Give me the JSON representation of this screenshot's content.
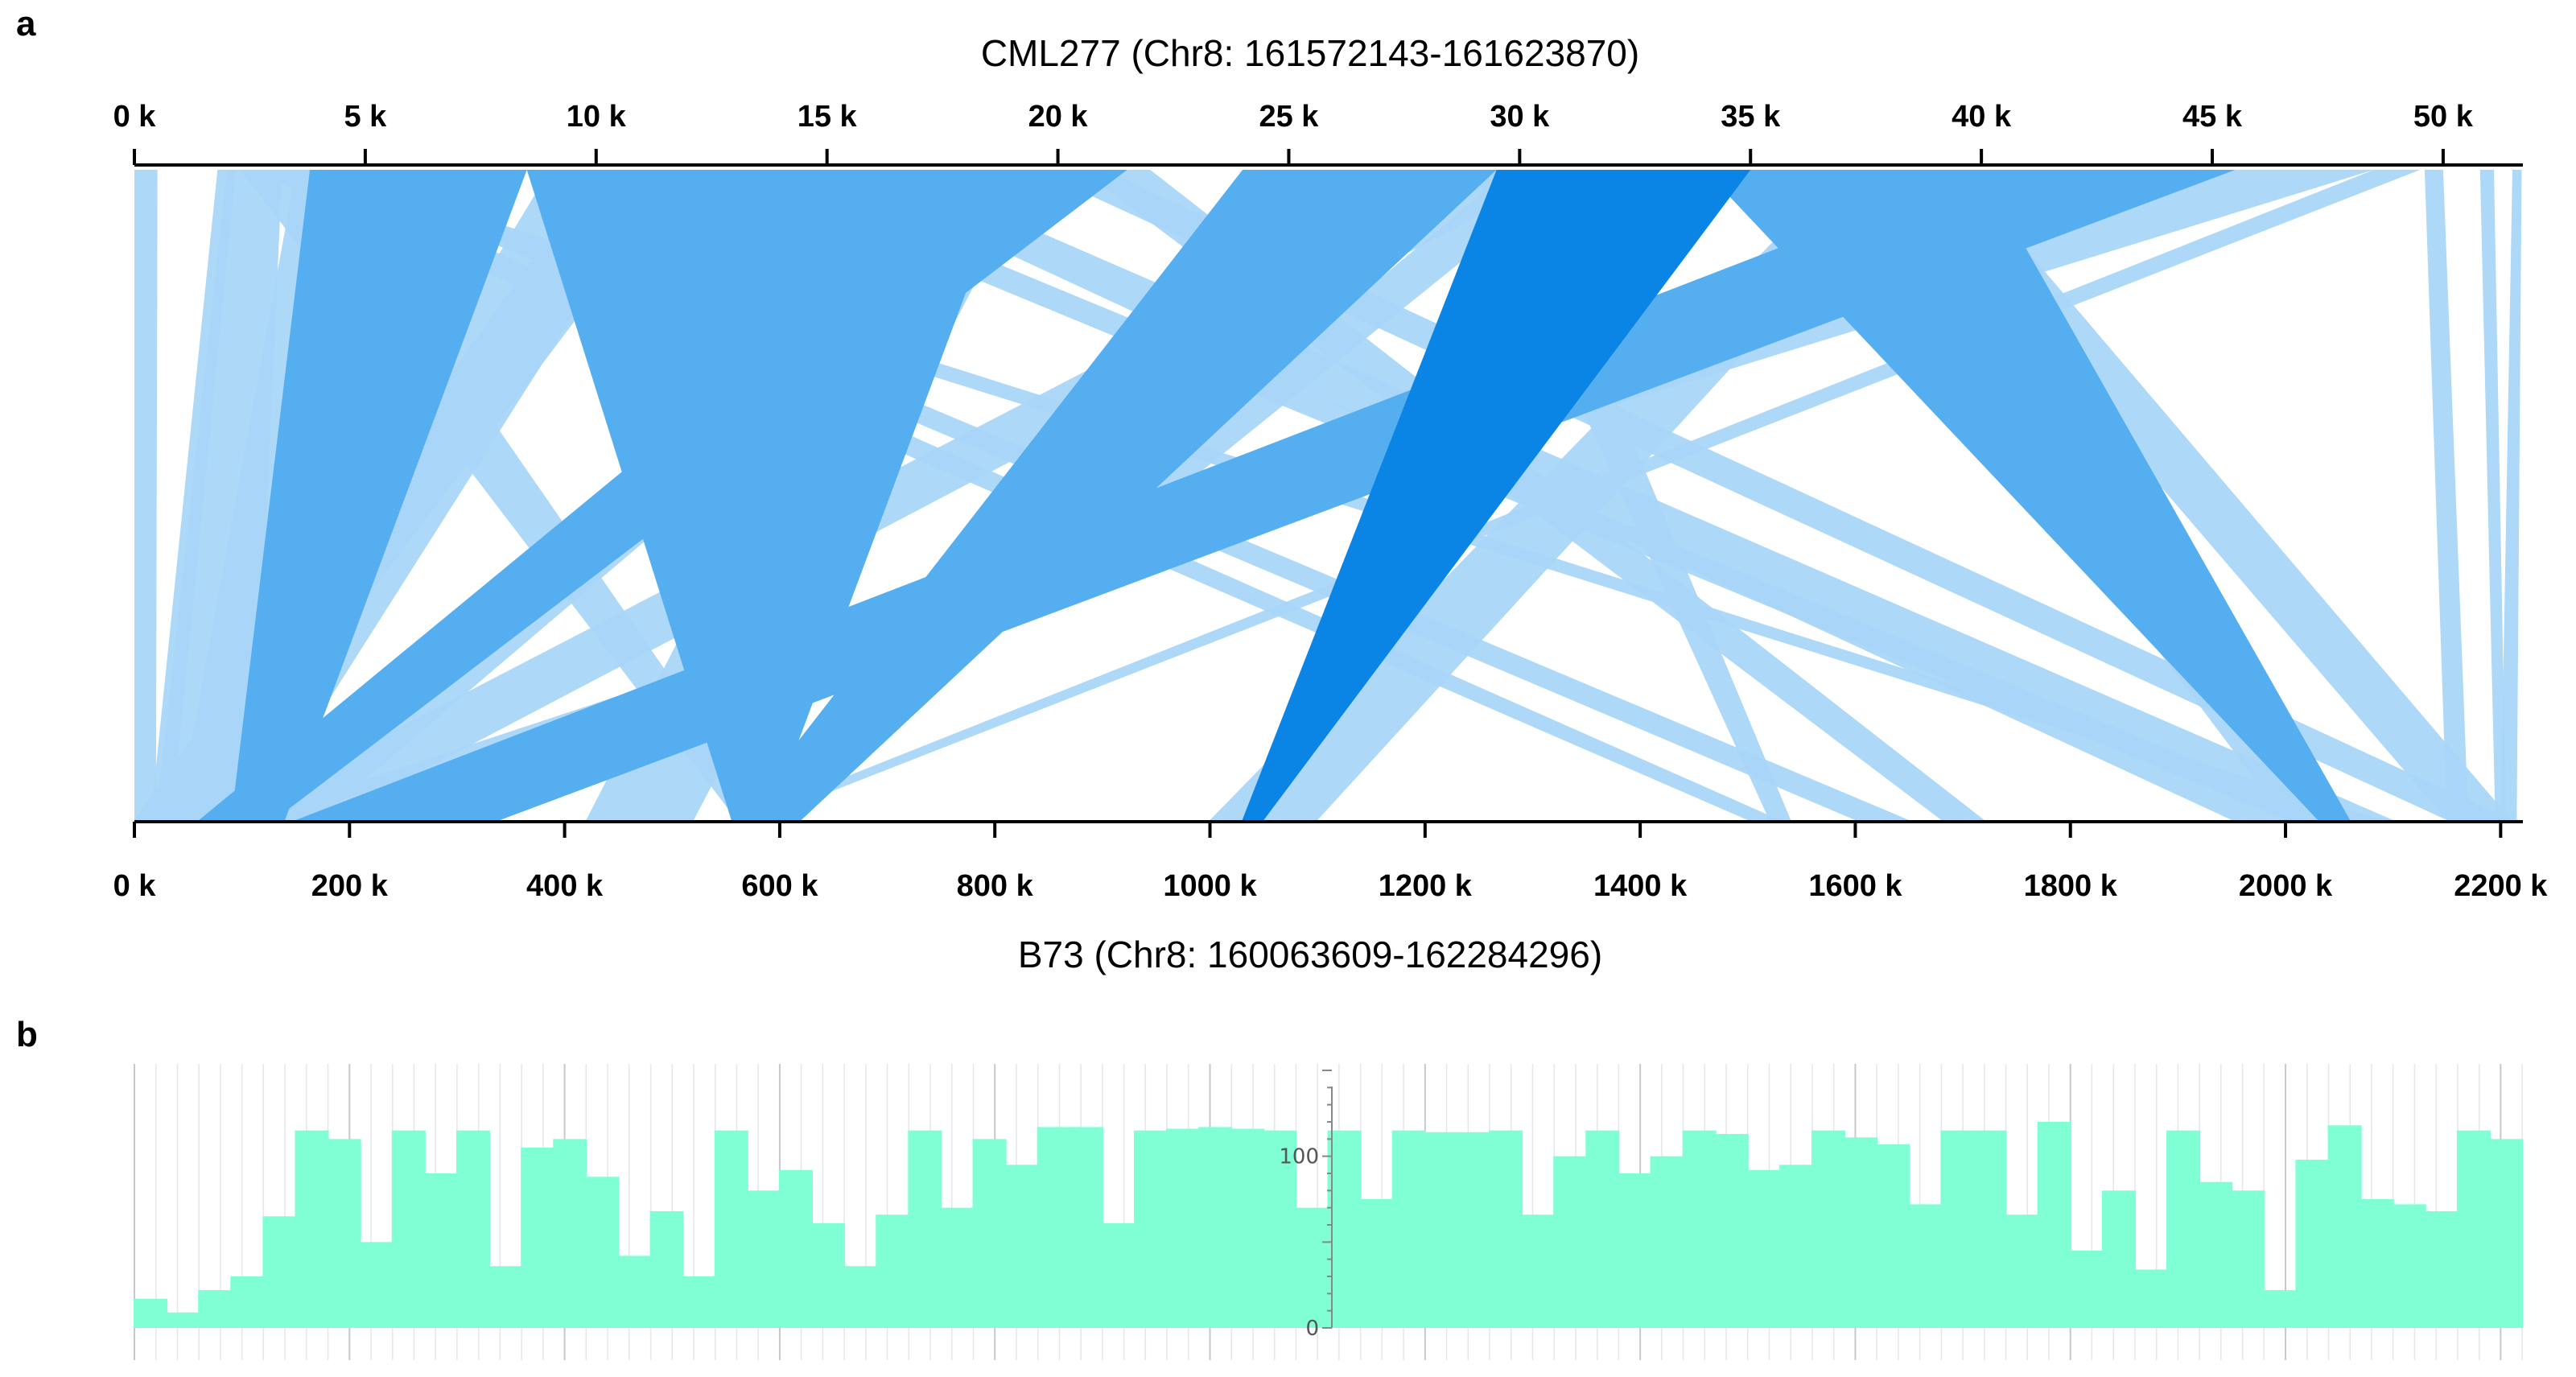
{
  "chart_data": [
    {
      "type": "synteny",
      "panel_label": "a",
      "top_title": "CML277 (Chr8: 161572143-161623870)",
      "bottom_title": "B73 (Chr8: 160063609-162284296)",
      "top_unit": "k",
      "bottom_unit": "k",
      "top_range": [
        0,
        51.727
      ],
      "bottom_range": [
        0,
        2220.687
      ],
      "top_ticks": [
        "0 k",
        "5 k",
        "10 k",
        "15 k",
        "20 k",
        "25 k",
        "30 k",
        "35 k",
        "40 k",
        "45 k",
        "50 k"
      ],
      "top_tick_values": [
        0,
        5,
        10,
        15,
        20,
        25,
        30,
        35,
        40,
        45,
        50
      ],
      "bottom_ticks": [
        "0 k",
        "200 k",
        "400 k",
        "600 k",
        "800 k",
        "1000 k",
        "1200 k",
        "1400 k",
        "1600 k",
        "1800 k",
        "2000 k",
        "2200 k"
      ],
      "bottom_tick_values": [
        0,
        200,
        400,
        600,
        800,
        1000,
        1200,
        1400,
        1600,
        1800,
        2000,
        2200
      ],
      "colors": {
        "dark": "#0a85e6",
        "mid": "#55aef0",
        "light": "#a9d6f8",
        "axis": "#000000"
      },
      "alignments": [
        {
          "q": [
            0.0,
            0.5
          ],
          "r": [
            0,
            20
          ],
          "shade": "light"
        },
        {
          "q": [
            1.8,
            2.2
          ],
          "r": [
            15,
            35
          ],
          "shade": "light"
        },
        {
          "q": [
            2.0,
            3.2
          ],
          "r": [
            20,
            110
          ],
          "shade": "light"
        },
        {
          "q": [
            2.3,
            4.0
          ],
          "r": [
            560,
            590
          ],
          "shade": "light"
        },
        {
          "q": [
            3.8,
            8.5
          ],
          "r": [
            90,
            140
          ],
          "shade": "mid"
        },
        {
          "q": [
            3.5,
            4.4
          ],
          "r": [
            40,
            130
          ],
          "shade": "light"
        },
        {
          "q": [
            8.5,
            13.5
          ],
          "r": [
            555,
            590
          ],
          "shade": "mid"
        },
        {
          "q": [
            13.0,
            19.0
          ],
          "r": [
            555,
            590
          ],
          "shade": "mid"
        },
        {
          "q": [
            18.5,
            21.5
          ],
          "r": [
            60,
            130
          ],
          "shade": "mid"
        },
        {
          "q": [
            9.0,
            11.5
          ],
          "r": [
            20,
            110
          ],
          "shade": "light"
        },
        {
          "q": [
            10.0,
            12.0
          ],
          "r": [
            0,
            60
          ],
          "shade": "light"
        },
        {
          "q": [
            19.0,
            20.5
          ],
          "r": [
            110,
            170
          ],
          "shade": "light"
        },
        {
          "q": [
            17.0,
            19.5
          ],
          "r": [
            420,
            520
          ],
          "shade": "light"
        },
        {
          "q": [
            2.5,
            3.8
          ],
          "r": [
            1500,
            1530
          ],
          "shade": "light"
        },
        {
          "q": [
            3.0,
            4.2
          ],
          "r": [
            2060,
            2090
          ],
          "shade": "light"
        },
        {
          "q": [
            4.0,
            5.0
          ],
          "r": [
            1600,
            1650
          ],
          "shade": "light"
        },
        {
          "q": [
            12.5,
            13.8
          ],
          "r": [
            2000,
            2050
          ],
          "shade": "light"
        },
        {
          "q": [
            15.0,
            16.5
          ],
          "r": [
            1950,
            2100
          ],
          "shade": "light"
        },
        {
          "q": [
            19.5,
            21.0
          ],
          "r": [
            2150,
            2210
          ],
          "shade": "light"
        },
        {
          "q": [
            20.5,
            22.0
          ],
          "r": [
            1680,
            1720
          ],
          "shade": "light"
        },
        {
          "q": [
            29.5,
            35.0
          ],
          "r": [
            1030,
            1050
          ],
          "shade": "dark"
        },
        {
          "q": [
            29.0,
            31.0
          ],
          "r": [
            80,
            180
          ],
          "shade": "light"
        },
        {
          "q": [
            29.8,
            31.2
          ],
          "r": [
            555,
            590
          ],
          "shade": "light"
        },
        {
          "q": [
            29.0,
            30.0
          ],
          "r": [
            1520,
            1540
          ],
          "shade": "light"
        },
        {
          "q": [
            34.0,
            40.0
          ],
          "r": [
            2030,
            2060
          ],
          "shade": "mid"
        },
        {
          "q": [
            36.0,
            38.0
          ],
          "r": [
            2000,
            2050
          ],
          "shade": "light"
        },
        {
          "q": [
            38.0,
            39.5
          ],
          "r": [
            2150,
            2210
          ],
          "shade": "light"
        },
        {
          "q": [
            37.0,
            38.5
          ],
          "r": [
            1000,
            1100
          ],
          "shade": "light"
        },
        {
          "q": [
            24.0,
            29.5
          ],
          "r": [
            560,
            620
          ],
          "shade": "mid"
        },
        {
          "q": [
            40.0,
            45.5
          ],
          "r": [
            150,
            340
          ],
          "shade": "mid"
        },
        {
          "q": [
            45.0,
            48.5
          ],
          "r": [
            100,
            130
          ],
          "shade": "light"
        },
        {
          "q": [
            48.5,
            49.5
          ],
          "r": [
            560,
            580
          ],
          "shade": "light"
        },
        {
          "q": [
            49.6,
            50.0
          ],
          "r": [
            2150,
            2170
          ],
          "shade": "light"
        },
        {
          "q": [
            50.8,
            51.1
          ],
          "r": [
            2195,
            2205
          ],
          "shade": "light"
        },
        {
          "q": [
            51.5,
            51.7
          ],
          "r": [
            2200,
            2215
          ],
          "shade": "light"
        }
      ]
    },
    {
      "type": "bar",
      "panel_label": "b",
      "ylim": [
        0,
        150
      ],
      "yticks": [
        0,
        100
      ],
      "ytick_labels": [
        "0",
        "100"
      ],
      "xlim": [
        0,
        2220.687
      ],
      "bar_color": "#80ffd4",
      "bar_starts_k": [
        0,
        30,
        60,
        90,
        120,
        150,
        180,
        210,
        240,
        270,
        300,
        330,
        360,
        390,
        420,
        450,
        480,
        510,
        540,
        570,
        600,
        630,
        660,
        690,
        720,
        750,
        780,
        810,
        840,
        870,
        900,
        930,
        960,
        990,
        1020,
        1050,
        1080,
        1110,
        1140,
        1170,
        1200,
        1230,
        1260,
        1290,
        1320,
        1350,
        1380,
        1410,
        1440,
        1470,
        1500,
        1530,
        1560,
        1590,
        1620,
        1650,
        1680,
        1710,
        1740,
        1770,
        1800,
        1830,
        1860,
        1890,
        1920,
        1950,
        1980,
        2010,
        2040,
        2070,
        2100,
        2130,
        2160,
        2190
      ],
      "values": [
        17,
        9,
        22,
        30,
        65,
        115,
        110,
        50,
        115,
        90,
        115,
        36,
        105,
        110,
        88,
        42,
        68,
        30,
        115,
        80,
        92,
        61,
        36,
        66,
        115,
        70,
        110,
        95,
        117,
        117,
        61,
        115,
        116,
        117,
        116,
        115,
        70,
        115,
        75,
        115,
        114,
        114,
        115,
        66,
        100,
        115,
        90,
        100,
        115,
        113,
        92,
        95,
        115,
        111,
        107,
        72,
        115,
        115,
        66,
        120,
        45,
        80,
        34,
        115,
        85,
        80,
        22,
        98,
        118,
        75,
        72,
        68,
        115,
        110
      ]
    }
  ]
}
